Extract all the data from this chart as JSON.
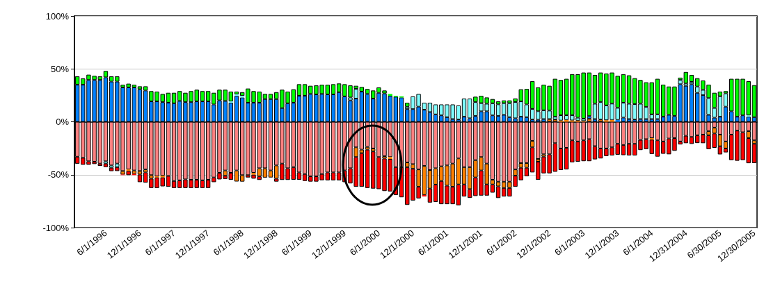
{
  "chart_data": {
    "type": "bar",
    "stacked": true,
    "categories": [
      null,
      null,
      null,
      null,
      null,
      "6/1/1996",
      null,
      null,
      null,
      null,
      null,
      "12/1/1996",
      null,
      null,
      null,
      null,
      null,
      "6/1/1997",
      null,
      null,
      null,
      null,
      null,
      "12/1/1997",
      null,
      null,
      null,
      null,
      null,
      "6/1/1998",
      null,
      null,
      null,
      null,
      null,
      "12/1/1998",
      null,
      null,
      null,
      null,
      null,
      "6/1/1999",
      null,
      null,
      null,
      null,
      null,
      "12/1/1999",
      null,
      null,
      null,
      null,
      null,
      "6/1/2000",
      null,
      null,
      null,
      null,
      null,
      "12/1/2000",
      null,
      null,
      null,
      null,
      null,
      "6/1/2001",
      null,
      null,
      null,
      null,
      null,
      "12/1/2001",
      null,
      null,
      null,
      null,
      null,
      "6/1/2002",
      null,
      null,
      null,
      null,
      null,
      "12/1/2002",
      null,
      null,
      null,
      null,
      null,
      "6/1/2003",
      null,
      null,
      null,
      null,
      null,
      "12/1/2003",
      null,
      null,
      null,
      null,
      null,
      "6/1/2004",
      null,
      null,
      null,
      null,
      null,
      "12/31/2004",
      null,
      null,
      null,
      null,
      null,
      "6/30/2005",
      null,
      null,
      null,
      null,
      null,
      "12/30/2005"
    ],
    "series": [
      {
        "color": "#ff8080",
        "values": [
          -33,
          -34,
          -37.3,
          -37.7,
          -39.5,
          -37.3,
          -41.2,
          -39.5,
          -46.5,
          -45,
          -46,
          -46.5,
          -45,
          -50.4,
          -51.5,
          -50.9,
          -51.1,
          -55.9,
          -55.3,
          -54.4,
          -54.8,
          -54.8,
          -55.3,
          -54.8,
          -52.6,
          -48.2,
          -46,
          -48.2,
          -46,
          -50.4,
          -50.4,
          -48.2,
          -43.9,
          -43.9,
          -46,
          -41.2,
          -39.5,
          -43.9,
          -42.8,
          -47.8,
          -49.3,
          -51.5,
          -51.5,
          -49.3,
          -47.8,
          -47.8,
          -47.8,
          -46,
          -43.9,
          -24.1,
          -26.3,
          -23.7,
          -25.2,
          -33.3,
          -32.5,
          -33.3,
          -42.8,
          -42.8,
          -38.4,
          -40,
          -45,
          -41.7,
          -45.6,
          -43.9,
          -42.1,
          -41.2,
          -39.5,
          -34.6,
          -42.8,
          -42.8,
          -36.2,
          -33.3,
          -39.5,
          -54.8,
          -56.6,
          -56.6,
          -56.6,
          -45,
          -39,
          -39,
          -18,
          -35.1,
          -30.7,
          -30.7,
          -20.2,
          -25.2,
          -24.6,
          -17.5,
          -18.6,
          -17.5,
          -16.4,
          -23,
          -25.2,
          -25.2,
          -24.1,
          -20.8,
          -21.9,
          -20.8,
          -20.8,
          -17.1,
          -16.4,
          -15.4,
          -17.5,
          -18.6,
          -15.8,
          -15.4,
          -18.6,
          -13.2,
          -14.3,
          -12.7,
          -12.1,
          -8.8,
          -5.5,
          -12.1,
          -18.6,
          -12.1,
          -8.3,
          -9.9,
          -8.8,
          -17.5
        ]
      },
      {
        "color": "#ff8000",
        "values": [
          0,
          0,
          0,
          0,
          0,
          0,
          0,
          0,
          -3.3,
          -1.5,
          -3.3,
          -3.3,
          -2.8,
          -3.3,
          -1.1,
          -1.7,
          0,
          0,
          0,
          0,
          0,
          0,
          0,
          0,
          0,
          0,
          -5,
          0,
          -10.4,
          -6.1,
          0,
          -1.8,
          -7.7,
          -8.8,
          -6.6,
          -12.5,
          0,
          0,
          0,
          0,
          0,
          0,
          0,
          0,
          0,
          0,
          0,
          0,
          0,
          -9.2,
          -3.3,
          -2.6,
          -2.8,
          0,
          -2.2,
          -1.8,
          0,
          0,
          -4.4,
          -4.4,
          -16.4,
          -27.4,
          -17.5,
          -15.4,
          -13.8,
          -19.1,
          -21.9,
          -24.6,
          -16.4,
          -20.8,
          -16.4,
          -12.7,
          -19.7,
          -4.4,
          -4.4,
          -5.9,
          -5.9,
          -5.9,
          -4.4,
          -4.4,
          -6.1,
          -2.6,
          -2.2,
          2.6,
          2.2,
          1.2,
          1.8,
          1.3,
          1.1,
          0.7,
          2.8,
          0,
          2.2,
          1.5,
          1.8,
          0,
          0,
          0,
          0,
          0,
          0,
          -1.5,
          0,
          0,
          0,
          0,
          0,
          0,
          0,
          0,
          0,
          -3.9,
          -5.5,
          -11,
          -6.6,
          0,
          0,
          0,
          -6.6,
          -3.3
        ]
      },
      {
        "color": "#0080ff",
        "values": [
          35,
          35,
          39.5,
          39.5,
          39.5,
          42,
          38,
          38,
          32.5,
          32.5,
          32.5,
          30.7,
          29.6,
          19.3,
          19.3,
          18.6,
          18,
          17.5,
          19.7,
          18.6,
          18.6,
          19.3,
          19.3,
          19.3,
          16.4,
          20.2,
          19.7,
          18,
          24.5,
          23,
          18,
          18,
          18,
          21.5,
          21.5,
          21.5,
          13,
          17.5,
          18,
          24.6,
          24.6,
          26.3,
          25.9,
          26.3,
          25.9,
          25.9,
          28,
          24,
          20.2,
          21.9,
          28.5,
          26.3,
          21.9,
          27.4,
          26.8,
          24.6,
          23.7,
          23,
          12,
          12,
          14.3,
          11.4,
          9.2,
          7,
          6.1,
          4.4,
          2.6,
          2.2,
          4.8,
          3.3,
          5.5,
          9.9,
          9.9,
          6.1,
          5.5,
          6.6,
          4.4,
          3.3,
          4.8,
          4.4,
          2.2,
          2,
          2.6,
          0,
          0,
          0,
          0,
          0,
          0,
          0,
          2.6,
          2.6,
          0,
          0,
          0,
          1.8,
          4,
          2.6,
          2.2,
          2.6,
          2.6,
          2.6,
          2.6,
          4.8,
          6.6,
          5.5,
          35.5,
          34,
          35.5,
          27.4,
          25.2,
          6.6,
          3.9,
          4.8,
          14.3,
          9.9,
          4.8,
          6.1,
          4.8,
          4.4
        ]
      },
      {
        "color": "#80ffff",
        "values": [
          0,
          0,
          0,
          0,
          0,
          -2.2,
          -2.2,
          -3.3,
          0,
          0,
          0,
          0,
          0,
          0,
          0,
          0,
          0,
          0,
          0,
          0,
          0,
          0,
          0,
          0,
          0,
          0,
          0,
          1.3,
          1.5,
          1.5,
          0,
          0,
          0,
          0,
          0,
          0,
          0,
          0,
          0,
          0,
          0,
          0,
          0,
          0,
          0,
          0,
          0,
          0,
          2.8,
          9.2,
          0,
          0,
          0,
          0,
          0,
          0,
          0,
          0,
          2.2,
          12,
          12,
          6.6,
          8.8,
          9.4,
          10.3,
          12,
          13.8,
          13.2,
          17.1,
          18.6,
          13.1,
          7.7,
          7.2,
          11.4,
          11,
          11,
          13.2,
          15.4,
          14.5,
          12,
          9.9,
          8,
          8.3,
          8,
          2.6,
          5,
          4.4,
          5,
          2.8,
          2.2,
          0,
          14.5,
          16.4,
          14,
          15.4,
          11.4,
          14,
          14.5,
          14.5,
          14.5,
          11.4,
          4.4,
          4.4,
          0,
          0,
          0,
          4,
          2.2,
          2.2,
          5.9,
          5,
          15.8,
          9.2,
          19.3,
          12.5,
          0,
          0,
          0,
          1.3,
          0
        ]
      },
      {
        "color": "#00ff00",
        "values": [
          8,
          6,
          5,
          3.9,
          3.5,
          6,
          5,
          5,
          2.5,
          3.5,
          2.5,
          2.8,
          3.9,
          9.7,
          9.2,
          7.7,
          9.4,
          9.9,
          9.3,
          8.8,
          10.4,
          11,
          9.7,
          9.7,
          11,
          10.1,
          10.6,
          9.2,
          2.5,
          3.5,
          13.4,
          11,
          10.5,
          4.8,
          4.8,
          6.5,
          17.3,
          11,
          12.7,
          10.9,
          10.9,
          7.7,
          8.5,
          8.7,
          9.1,
          9.6,
          8.2,
          11.5,
          11.4,
          2.9,
          4.4,
          4.7,
          7.7,
          5.1,
          2.8,
          1.7,
          0.9,
          1,
          3.8,
          0,
          0,
          0,
          0,
          0,
          0,
          0,
          0,
          0,
          0,
          0,
          5.1,
          7,
          5.9,
          4,
          2.8,
          2.6,
          2.6,
          3.3,
          11.4,
          14.7,
          26.3,
          22.5,
          24.1,
          23.4,
          35.8,
          33.3,
          34.4,
          38.7,
          41,
          43.6,
          41.1,
          27.2,
          27.9,
          30.1,
          29.3,
          30.2,
          27,
          26.8,
          24.5,
          22.4,
          23.3,
          30.3,
          33.6,
          30.3,
          26.7,
          27.8,
          2.2,
          10.8,
          6.6,
          7.9,
          8.8,
          12.7,
          14.3,
          4.4,
          2.2,
          30.7,
          35.8,
          34.5,
          32.3,
          30.2
        ]
      },
      {
        "color": "#ff0000",
        "values": [
          -6.6,
          -6.6,
          -3.3,
          -2.2,
          -2.2,
          -3.3,
          -3.2,
          -3.7,
          -0.6,
          -3.9,
          -1.1,
          -7.2,
          -9.7,
          -8.8,
          -9.9,
          -8.4,
          -10.3,
          -6.6,
          -7.2,
          -8.1,
          -7.7,
          -7.7,
          -7.2,
          -7.7,
          -4.4,
          -6.2,
          -3,
          -6.6,
          0,
          0,
          -2.2,
          -3.7,
          -3.3,
          0,
          0,
          -2.8,
          -15.4,
          -11,
          -12,
          -7,
          -6.6,
          -5,
          -5,
          -5.9,
          -7.5,
          -7.5,
          -7.5,
          -11,
          -14.3,
          -28.1,
          -31.8,
          -36.2,
          -35.1,
          -30.3,
          -30.7,
          -30.7,
          -26.3,
          -28.5,
          -35.7,
          -30,
          -11,
          -1.5,
          -13.2,
          -16.4,
          -21.9,
          -17.5,
          -16.4,
          -19.7,
          -11.4,
          -8.3,
          -17.5,
          -23.7,
          -10.5,
          -7.7,
          -11,
          -8.1,
          -8.1,
          -10.5,
          -11.8,
          -8.1,
          -23.7,
          -17.1,
          -15.8,
          -18,
          -27,
          -20.4,
          -20.4,
          -20.8,
          -19.1,
          -19.7,
          -20.8,
          -12.5,
          -9.4,
          -7.2,
          -7.7,
          -10.3,
          -9.6,
          -11,
          -11,
          -9.6,
          -9.4,
          -13.5,
          -15.4,
          -11.6,
          -14.9,
          -12,
          -2.8,
          -7,
          -6.6,
          -7.4,
          -8.1,
          -13.2,
          -13.6,
          -7.7,
          -3.7,
          -24.1,
          -28.5,
          -26.3,
          -23.7,
          -18.2
        ]
      }
    ],
    "ylim": [
      -100,
      100
    ],
    "yticks": [
      {
        "value": -100,
        "label": "-100%"
      },
      {
        "value": -50,
        "label": "-50%"
      },
      {
        "value": 0,
        "label": "0%"
      },
      {
        "value": 50,
        "label": "50%"
      },
      {
        "value": 100,
        "label": "100%"
      }
    ],
    "grid": "y"
  }
}
